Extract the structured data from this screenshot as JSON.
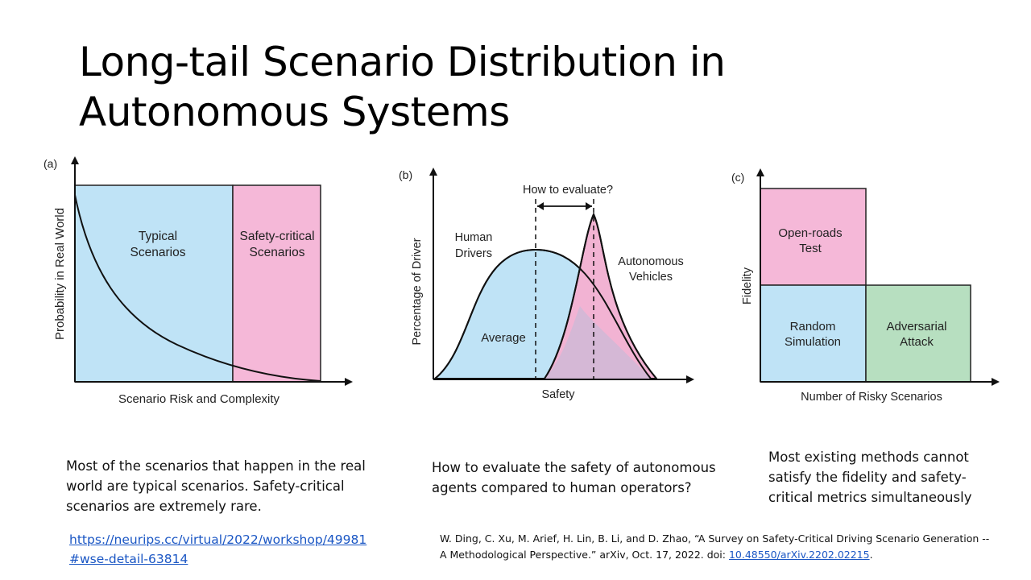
{
  "slide": {
    "title": "Long-tail Scenario Distribution in Autonomous Systems"
  },
  "panels": {
    "a": {
      "label": "(a)",
      "ylabel": "Probability in Real World",
      "xlabel": "Scenario Risk and Complexity",
      "region1": [
        "Typical",
        "Scenarios"
      ],
      "region2": [
        "Safety-critical",
        "Scenarios"
      ],
      "colors": {
        "typical": "#bfe3f6",
        "critical": "#f5b8d8"
      }
    },
    "b": {
      "label": "(b)",
      "ylabel": "Percentage of Driver",
      "xlabel": "Safety",
      "question": "How to evaluate?",
      "human": [
        "Human",
        "Drivers"
      ],
      "av": [
        "Autonomous",
        "Vehicles"
      ],
      "average": "Average",
      "colors": {
        "human": "#bfe3f6",
        "av": "#f2b3d3",
        "overlap": "#d3b8d6"
      }
    },
    "c": {
      "label": "(c)",
      "ylabel": "Fidelity",
      "xlabel": "Number of Risky Scenarios",
      "open_roads": [
        "Open-roads",
        "Test"
      ],
      "random": [
        "Random",
        "Simulation"
      ],
      "adversarial": [
        "Adversarial",
        "Attack"
      ],
      "colors": {
        "open_roads": "#f5b8d8",
        "random": "#bfe3f6",
        "adversarial": "#b7dfc0"
      }
    }
  },
  "captions": {
    "a": "Most of the scenarios that happen in the real world are typical scenarios. Safety-critical scenarios are extremely rare.",
    "b": "How to evaluate the safety of autonomous agents  compared to human operators?",
    "c": "Most existing methods cannot satisfy the fidelity and safety-critical metrics simultaneously"
  },
  "references": {
    "link_line1": "https://neurips.cc/virtual/2022/workshop/49981",
    "link_line2": "#wse-detail-63814",
    "citation_text": "W. Ding, C. Xu, M. Arief, H. Lin, B. Li, and D. Zhao, “A Survey on Safety-Critical Driving Scenario Generation -- A Methodological Perspective.” arXiv, Oct. 17, 2022. doi: ",
    "doi": "10.48550/arXiv.2202.02215",
    "citation_end": "."
  }
}
